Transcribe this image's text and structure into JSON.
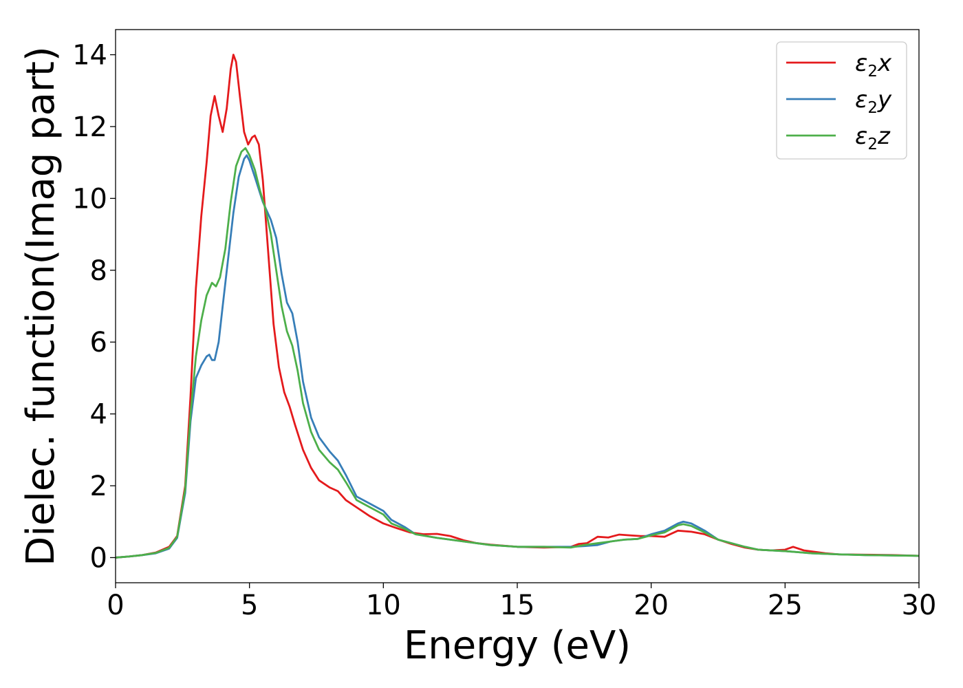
{
  "chart_data": {
    "type": "line",
    "xlabel": "Energy (eV)",
    "ylabel": "Dielec. function(Imag part)",
    "xlim": [
      0,
      30
    ],
    "ylim": [
      -0.7,
      14.7
    ],
    "xticks": [
      0,
      5,
      10,
      15,
      20,
      25,
      30
    ],
    "yticks": [
      0,
      2,
      4,
      6,
      8,
      10,
      12,
      14
    ],
    "legend_position": "top-right",
    "grid": false,
    "series": [
      {
        "name": "ε2x",
        "legend_base": "ε",
        "legend_sub": "2",
        "legend_suffix": "x",
        "color": "#e41a1c",
        "points": [
          [
            0,
            0
          ],
          [
            0.5,
            0.03
          ],
          [
            1,
            0.07
          ],
          [
            1.5,
            0.14
          ],
          [
            2,
            0.3
          ],
          [
            2.3,
            0.6
          ],
          [
            2.6,
            2.0
          ],
          [
            2.8,
            4.5
          ],
          [
            3.0,
            7.5
          ],
          [
            3.2,
            9.5
          ],
          [
            3.4,
            11.0
          ],
          [
            3.55,
            12.3
          ],
          [
            3.7,
            12.85
          ],
          [
            3.85,
            12.3
          ],
          [
            4.0,
            11.85
          ],
          [
            4.15,
            12.5
          ],
          [
            4.3,
            13.6
          ],
          [
            4.4,
            14.0
          ],
          [
            4.5,
            13.8
          ],
          [
            4.65,
            12.8
          ],
          [
            4.8,
            11.85
          ],
          [
            4.95,
            11.5
          ],
          [
            5.1,
            11.7
          ],
          [
            5.2,
            11.75
          ],
          [
            5.35,
            11.5
          ],
          [
            5.5,
            10.5
          ],
          [
            5.7,
            8.5
          ],
          [
            5.9,
            6.5
          ],
          [
            6.1,
            5.3
          ],
          [
            6.3,
            4.6
          ],
          [
            6.5,
            4.2
          ],
          [
            6.7,
            3.7
          ],
          [
            7.0,
            3.0
          ],
          [
            7.3,
            2.5
          ],
          [
            7.6,
            2.15
          ],
          [
            8.0,
            1.95
          ],
          [
            8.3,
            1.85
          ],
          [
            8.6,
            1.6
          ],
          [
            9.0,
            1.4
          ],
          [
            9.5,
            1.15
          ],
          [
            10,
            0.95
          ],
          [
            10.5,
            0.82
          ],
          [
            11,
            0.7
          ],
          [
            11.5,
            0.65
          ],
          [
            12,
            0.66
          ],
          [
            12.5,
            0.6
          ],
          [
            13,
            0.48
          ],
          [
            13.5,
            0.4
          ],
          [
            14,
            0.36
          ],
          [
            15,
            0.3
          ],
          [
            16,
            0.28
          ],
          [
            17,
            0.3
          ],
          [
            17.3,
            0.38
          ],
          [
            17.6,
            0.4
          ],
          [
            18,
            0.58
          ],
          [
            18.4,
            0.56
          ],
          [
            18.8,
            0.64
          ],
          [
            19.2,
            0.62
          ],
          [
            19.6,
            0.6
          ],
          [
            20,
            0.6
          ],
          [
            20.5,
            0.58
          ],
          [
            21,
            0.75
          ],
          [
            21.5,
            0.72
          ],
          [
            22,
            0.65
          ],
          [
            22.5,
            0.5
          ],
          [
            23,
            0.38
          ],
          [
            23.5,
            0.28
          ],
          [
            24,
            0.22
          ],
          [
            24.5,
            0.2
          ],
          [
            25,
            0.22
          ],
          [
            25.3,
            0.3
          ],
          [
            25.7,
            0.2
          ],
          [
            26.5,
            0.12
          ],
          [
            27,
            0.09
          ],
          [
            28,
            0.08
          ],
          [
            29,
            0.07
          ],
          [
            30,
            0.05
          ]
        ]
      },
      {
        "name": "ε2y",
        "legend_base": "ε",
        "legend_sub": "2",
        "legend_suffix": "y",
        "color": "#377eb8",
        "points": [
          [
            0,
            0
          ],
          [
            0.5,
            0.03
          ],
          [
            1,
            0.07
          ],
          [
            1.5,
            0.12
          ],
          [
            2,
            0.25
          ],
          [
            2.3,
            0.55
          ],
          [
            2.6,
            1.8
          ],
          [
            2.8,
            3.8
          ],
          [
            3.0,
            5.0
          ],
          [
            3.2,
            5.35
          ],
          [
            3.4,
            5.6
          ],
          [
            3.5,
            5.65
          ],
          [
            3.6,
            5.5
          ],
          [
            3.7,
            5.5
          ],
          [
            3.85,
            6.0
          ],
          [
            4.0,
            7.0
          ],
          [
            4.2,
            8.3
          ],
          [
            4.4,
            9.6
          ],
          [
            4.6,
            10.6
          ],
          [
            4.8,
            11.1
          ],
          [
            4.9,
            11.2
          ],
          [
            5.0,
            11.05
          ],
          [
            5.2,
            10.6
          ],
          [
            5.5,
            9.9
          ],
          [
            5.8,
            9.4
          ],
          [
            6.0,
            8.9
          ],
          [
            6.2,
            7.9
          ],
          [
            6.4,
            7.1
          ],
          [
            6.6,
            6.8
          ],
          [
            6.8,
            6.0
          ],
          [
            7.0,
            4.9
          ],
          [
            7.3,
            3.9
          ],
          [
            7.6,
            3.35
          ],
          [
            8.0,
            2.95
          ],
          [
            8.3,
            2.7
          ],
          [
            8.6,
            2.3
          ],
          [
            9.0,
            1.7
          ],
          [
            9.5,
            1.5
          ],
          [
            10,
            1.3
          ],
          [
            10.3,
            1.05
          ],
          [
            10.8,
            0.85
          ],
          [
            11.2,
            0.65
          ],
          [
            12,
            0.55
          ],
          [
            13,
            0.45
          ],
          [
            14,
            0.35
          ],
          [
            15,
            0.3
          ],
          [
            16,
            0.3
          ],
          [
            17,
            0.3
          ],
          [
            17.5,
            0.32
          ],
          [
            18,
            0.35
          ],
          [
            18.5,
            0.45
          ],
          [
            19,
            0.5
          ],
          [
            19.5,
            0.52
          ],
          [
            20,
            0.65
          ],
          [
            20.5,
            0.75
          ],
          [
            21,
            0.95
          ],
          [
            21.2,
            1.0
          ],
          [
            21.5,
            0.95
          ],
          [
            22,
            0.75
          ],
          [
            22.5,
            0.5
          ],
          [
            23,
            0.4
          ],
          [
            23.5,
            0.3
          ],
          [
            24,
            0.22
          ],
          [
            25,
            0.18
          ],
          [
            25.5,
            0.15
          ],
          [
            26,
            0.12
          ],
          [
            27,
            0.09
          ],
          [
            28,
            0.07
          ],
          [
            29,
            0.06
          ],
          [
            30,
            0.05
          ]
        ]
      },
      {
        "name": "ε2z",
        "legend_base": "ε",
        "legend_sub": "2",
        "legend_suffix": "z",
        "color": "#4daf4a",
        "points": [
          [
            0,
            0
          ],
          [
            0.5,
            0.03
          ],
          [
            1,
            0.07
          ],
          [
            1.5,
            0.13
          ],
          [
            2,
            0.27
          ],
          [
            2.3,
            0.58
          ],
          [
            2.6,
            1.9
          ],
          [
            2.8,
            4.0
          ],
          [
            3.0,
            5.6
          ],
          [
            3.2,
            6.6
          ],
          [
            3.4,
            7.3
          ],
          [
            3.6,
            7.65
          ],
          [
            3.75,
            7.55
          ],
          [
            3.9,
            7.8
          ],
          [
            4.1,
            8.6
          ],
          [
            4.3,
            9.9
          ],
          [
            4.5,
            10.9
          ],
          [
            4.7,
            11.3
          ],
          [
            4.85,
            11.4
          ],
          [
            5.0,
            11.2
          ],
          [
            5.2,
            10.8
          ],
          [
            5.4,
            10.2
          ],
          [
            5.6,
            9.7
          ],
          [
            5.8,
            9.0
          ],
          [
            6.0,
            8.0
          ],
          [
            6.2,
            7.0
          ],
          [
            6.4,
            6.3
          ],
          [
            6.6,
            5.9
          ],
          [
            6.8,
            5.2
          ],
          [
            7.0,
            4.3
          ],
          [
            7.3,
            3.5
          ],
          [
            7.6,
            3.0
          ],
          [
            8.0,
            2.65
          ],
          [
            8.3,
            2.45
          ],
          [
            8.6,
            2.1
          ],
          [
            9.0,
            1.6
          ],
          [
            9.5,
            1.4
          ],
          [
            10,
            1.2
          ],
          [
            10.3,
            0.95
          ],
          [
            10.8,
            0.8
          ],
          [
            11.2,
            0.65
          ],
          [
            12,
            0.55
          ],
          [
            13,
            0.45
          ],
          [
            14,
            0.35
          ],
          [
            15,
            0.3
          ],
          [
            16,
            0.3
          ],
          [
            17,
            0.28
          ],
          [
            17.5,
            0.35
          ],
          [
            18,
            0.4
          ],
          [
            18.5,
            0.45
          ],
          [
            19,
            0.5
          ],
          [
            19.5,
            0.52
          ],
          [
            20,
            0.62
          ],
          [
            20.5,
            0.7
          ],
          [
            21,
            0.9
          ],
          [
            21.2,
            0.93
          ],
          [
            21.5,
            0.88
          ],
          [
            22,
            0.7
          ],
          [
            22.5,
            0.5
          ],
          [
            23,
            0.4
          ],
          [
            23.5,
            0.3
          ],
          [
            24,
            0.22
          ],
          [
            25,
            0.18
          ],
          [
            25.5,
            0.15
          ],
          [
            26,
            0.12
          ],
          [
            27,
            0.09
          ],
          [
            28,
            0.07
          ],
          [
            29,
            0.06
          ],
          [
            30,
            0.05
          ]
        ]
      }
    ]
  }
}
